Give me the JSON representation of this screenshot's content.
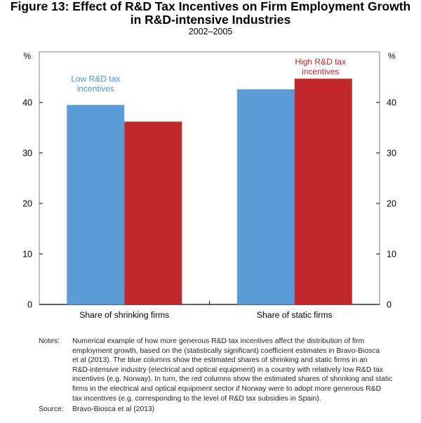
{
  "figure": {
    "title_line1": "Figure 13: Effect of R&D Tax Incentives on Firm Employment Growth",
    "title_line2": "in R&D-intensive Industries",
    "subtitle": "2002–2005"
  },
  "chart_data": {
    "type": "bar",
    "categories": [
      "Share of shrinking firms",
      "Share of static firms"
    ],
    "series": [
      {
        "name": "Low R&D tax incentives",
        "label_lines": [
          "Low R&D tax",
          "incentives"
        ],
        "color": "#5b9bd5",
        "label_color": "#4f8fd0",
        "values": [
          39.5,
          42.6
        ]
      },
      {
        "name": "High R&D tax incentives",
        "label_lines": [
          "High R&D tax",
          "incentives"
        ],
        "color": "#c1272d",
        "label_color": "#c1272d",
        "values": [
          36.2,
          44.7
        ]
      }
    ],
    "ylim": [
      0,
      50
    ],
    "yticks": [
      0,
      10,
      20,
      30,
      40
    ],
    "left_axis_unit": "%",
    "right_axis_unit": "%",
    "grid": false
  },
  "notes": {
    "notes_label": "Notes:",
    "notes_lines": [
      "Numerical example of how more generous R&D tax incentives affect the distribution of firm",
      "employment growth, based on the (statistically significant) coefficient estimates in Bravo-Biosca",
      "et al (2013). The blue columns show the estimated shares of shrinking and static firms in an",
      "R&D-intensive industry (electrical and optical equipment) in a country with relatively low R&D tax",
      "incentives (e.g. Norway). In turn, the red columns show the estimated shares of shrinking and static",
      "firms in the electrical and optical equipment sector if Norway were to adopt more generous R&D",
      "tax incentives (e.g. corresponding to the level of R&D tax subsidies in Spain)."
    ],
    "source_label": "Source:",
    "source_text": "Bravo-Biosca et al (2013)"
  },
  "colors": {
    "axis": "#000000",
    "frame": "#7f7f7f"
  }
}
